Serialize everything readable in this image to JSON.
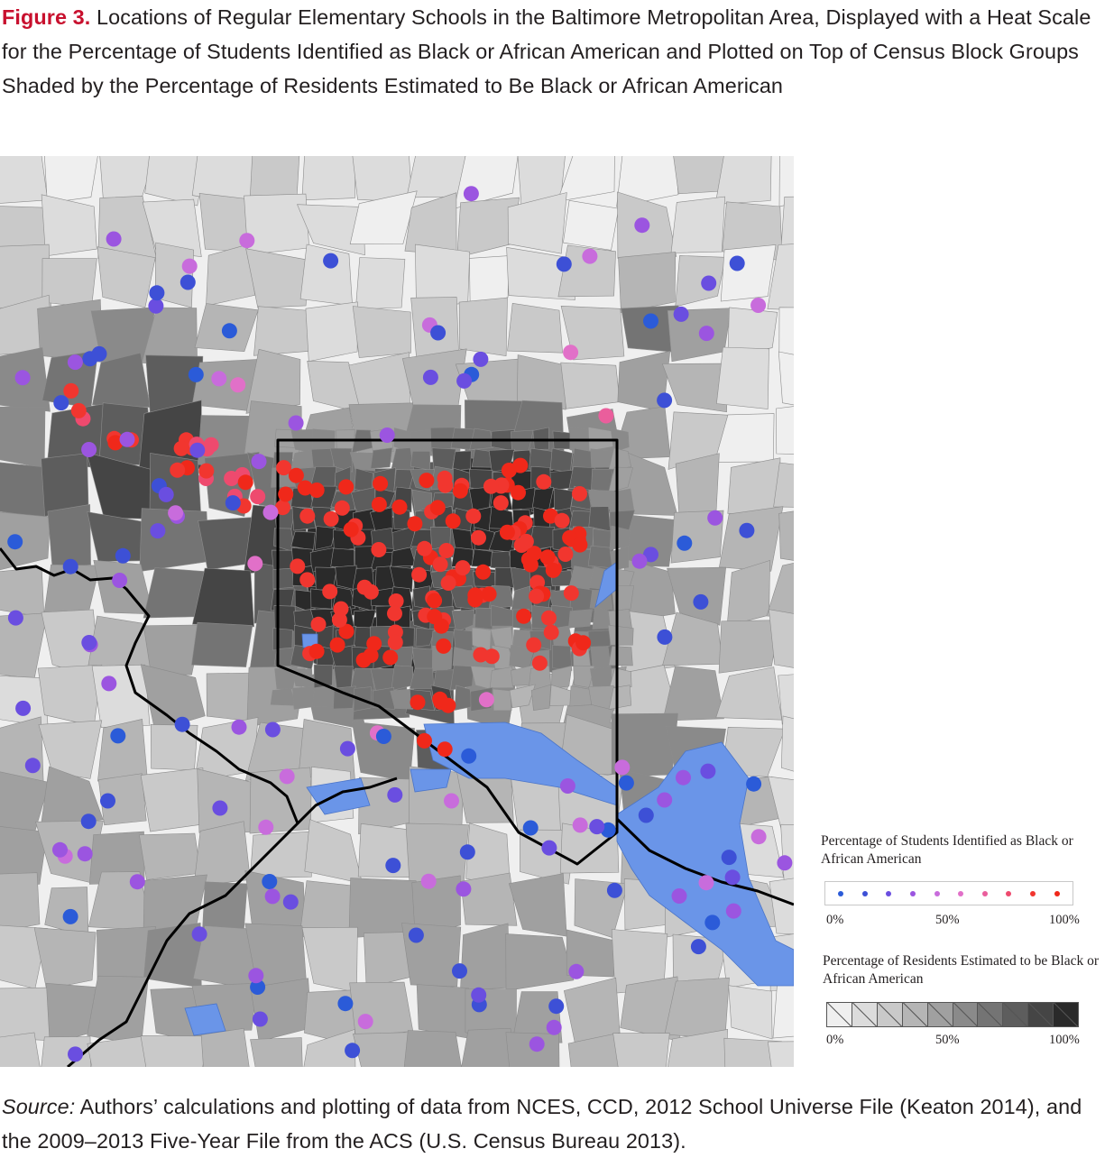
{
  "caption": {
    "label": "Figure 3.",
    "text": "Locations of Regular Elementary Schools in the Baltimore Metropolitan Area, Displayed with a Heat Scale for the Percentage of Students Identified as Black or African American and Plotted on Top of Census Block Groups Shaded by the Percentage of Residents Estimated to Be Black or African American"
  },
  "legend": {
    "students": {
      "title": "Percentage of Students Identified as Black or African American",
      "ticks": [
        "0%",
        "50%",
        "100%"
      ],
      "colors": [
        "#2b5bd8",
        "#3d50d6",
        "#6a4ee0",
        "#9b55e0",
        "#c86cdc",
        "#e170c8",
        "#ea5e9c",
        "#ee4a6e",
        "#f1362f",
        "#f0281a"
      ]
    },
    "residents": {
      "title": "Percentage of Residents Estimated to be Black or African American",
      "ticks": [
        "0%",
        "50%",
        "100%"
      ],
      "colors": [
        "#efefef",
        "#dcdcdc",
        "#c9c9c9",
        "#b5b5b5",
        "#a0a0a0",
        "#8a8a8a",
        "#747474",
        "#5d5d5d",
        "#454545",
        "#2a2a2a"
      ]
    }
  },
  "map_colors": {
    "water": "#6a95e8",
    "boundary": "#000000",
    "tract_lines": "#8c8c8c"
  },
  "source": {
    "label": "Source:",
    "text": "Authors’ calculations and plotting of data from NCES, CCD, 2012 School Universe File (Keaton 2014), and the 2009–2013 Five-Year File from the ACS (U.S. Census Bureau 2013)."
  }
}
